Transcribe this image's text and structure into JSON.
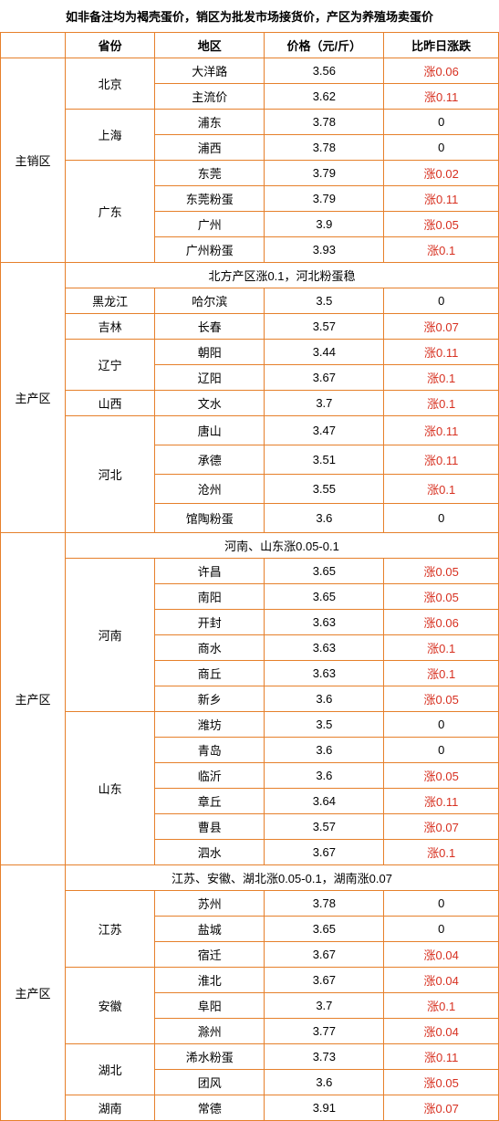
{
  "title": "如非备注均为褐壳蛋价，销区为批发市场接货价，产区为养殖场卖蛋价",
  "headers": {
    "province": "省份",
    "area": "地区",
    "price": "价格（元/斤）",
    "change": "比昨日涨跌"
  },
  "zones": [
    {
      "zone": "主销区",
      "groups": [
        {
          "province": "北京",
          "rows": [
            {
              "area": "大洋路",
              "price": "3.56",
              "change": "涨0.06",
              "cls": "red"
            },
            {
              "area": "主流价",
              "price": "3.62",
              "change": "涨0.11",
              "cls": "red"
            }
          ]
        },
        {
          "province": "上海",
          "rows": [
            {
              "area": "浦东",
              "price": "3.78",
              "change": "0",
              "cls": "black"
            },
            {
              "area": "浦西",
              "price": "3.78",
              "change": "0",
              "cls": "black"
            }
          ]
        },
        {
          "province": "广东",
          "rows": [
            {
              "area": "东莞",
              "price": "3.79",
              "change": "涨0.02",
              "cls": "red"
            },
            {
              "area": "东莞粉蛋",
              "price": "3.79",
              "change": "涨0.11",
              "cls": "red"
            },
            {
              "area": "广州",
              "price": "3.9",
              "change": "涨0.05",
              "cls": "red"
            },
            {
              "area": "广州粉蛋",
              "price": "3.93",
              "change": "涨0.1",
              "cls": "red"
            }
          ]
        }
      ]
    },
    {
      "zone": "主产区",
      "note": "北方产区涨0.1，河北粉蛋稳",
      "groups": [
        {
          "province": "黑龙江",
          "rows": [
            {
              "area": "哈尔滨",
              "price": "3.5",
              "change": "0",
              "cls": "black"
            }
          ]
        },
        {
          "province": "吉林",
          "rows": [
            {
              "area": "长春",
              "price": "3.57",
              "change": "涨0.07",
              "cls": "red"
            }
          ]
        },
        {
          "province": "辽宁",
          "rows": [
            {
              "area": "朝阳",
              "price": "3.44",
              "change": "涨0.11",
              "cls": "red"
            },
            {
              "area": "辽阳",
              "price": "3.67",
              "change": "涨0.1",
              "cls": "red"
            }
          ]
        },
        {
          "province": "山西",
          "rows": [
            {
              "area": "文水",
              "price": "3.7",
              "change": "涨0.1",
              "cls": "red"
            }
          ]
        },
        {
          "province": "河北",
          "rows": [
            {
              "area": "唐山",
              "price": "3.47",
              "change": "涨0.11",
              "cls": "red",
              "tall": true
            },
            {
              "area": "承德",
              "price": "3.51",
              "change": "涨0.11",
              "cls": "red",
              "tall": true
            },
            {
              "area": "沧州",
              "price": "3.55",
              "change": "涨0.1",
              "cls": "red",
              "tall": true
            },
            {
              "area": "馆陶粉蛋",
              "price": "3.6",
              "change": "0",
              "cls": "black",
              "tall": true
            }
          ]
        }
      ]
    },
    {
      "zone": "主产区",
      "note": "河南、山东涨0.05-0.1",
      "groups": [
        {
          "province": "河南",
          "rows": [
            {
              "area": "许昌",
              "price": "3.65",
              "change": "涨0.05",
              "cls": "red"
            },
            {
              "area": "南阳",
              "price": "3.65",
              "change": "涨0.05",
              "cls": "red"
            },
            {
              "area": "开封",
              "price": "3.63",
              "change": "涨0.06",
              "cls": "red"
            },
            {
              "area": "商水",
              "price": "3.63",
              "change": "涨0.1",
              "cls": "red"
            },
            {
              "area": "商丘",
              "price": "3.63",
              "change": "涨0.1",
              "cls": "red"
            },
            {
              "area": "新乡",
              "price": "3.6",
              "change": "涨0.05",
              "cls": "red"
            }
          ]
        },
        {
          "province": "山东",
          "rows": [
            {
              "area": "潍坊",
              "price": "3.5",
              "change": "0",
              "cls": "black"
            },
            {
              "area": "青岛",
              "price": "3.6",
              "change": "0",
              "cls": "black"
            },
            {
              "area": "临沂",
              "price": "3.6",
              "change": "涨0.05",
              "cls": "red"
            },
            {
              "area": "章丘",
              "price": "3.64",
              "change": "涨0.11",
              "cls": "red"
            },
            {
              "area": "曹县",
              "price": "3.57",
              "change": "涨0.07",
              "cls": "red"
            },
            {
              "area": "泗水",
              "price": "3.67",
              "change": "涨0.1",
              "cls": "red"
            }
          ]
        }
      ]
    },
    {
      "zone": "主产区",
      "note": "江苏、安徽、湖北涨0.05-0.1，湖南涨0.07",
      "groups": [
        {
          "province": "江苏",
          "rows": [
            {
              "area": "苏州",
              "price": "3.78",
              "change": "0",
              "cls": "black"
            },
            {
              "area": "盐城",
              "price": "3.65",
              "change": "0",
              "cls": "black"
            },
            {
              "area": "宿迁",
              "price": "3.67",
              "change": "涨0.04",
              "cls": "red"
            }
          ]
        },
        {
          "province": "安徽",
          "rows": [
            {
              "area": "淮北",
              "price": "3.67",
              "change": "涨0.04",
              "cls": "red"
            },
            {
              "area": "阜阳",
              "price": "3.7",
              "change": "涨0.1",
              "cls": "red"
            },
            {
              "area": "滁州",
              "price": "3.77",
              "change": "涨0.04",
              "cls": "red"
            }
          ]
        },
        {
          "province": "湖北",
          "rows": [
            {
              "area": "浠水粉蛋",
              "price": "3.73",
              "change": "涨0.11",
              "cls": "red"
            },
            {
              "area": "团风",
              "price": "3.6",
              "change": "涨0.05",
              "cls": "red"
            }
          ]
        },
        {
          "province": "湖南",
          "rows": [
            {
              "area": "常德",
              "price": "3.91",
              "change": "涨0.07",
              "cls": "red"
            }
          ]
        }
      ]
    }
  ]
}
